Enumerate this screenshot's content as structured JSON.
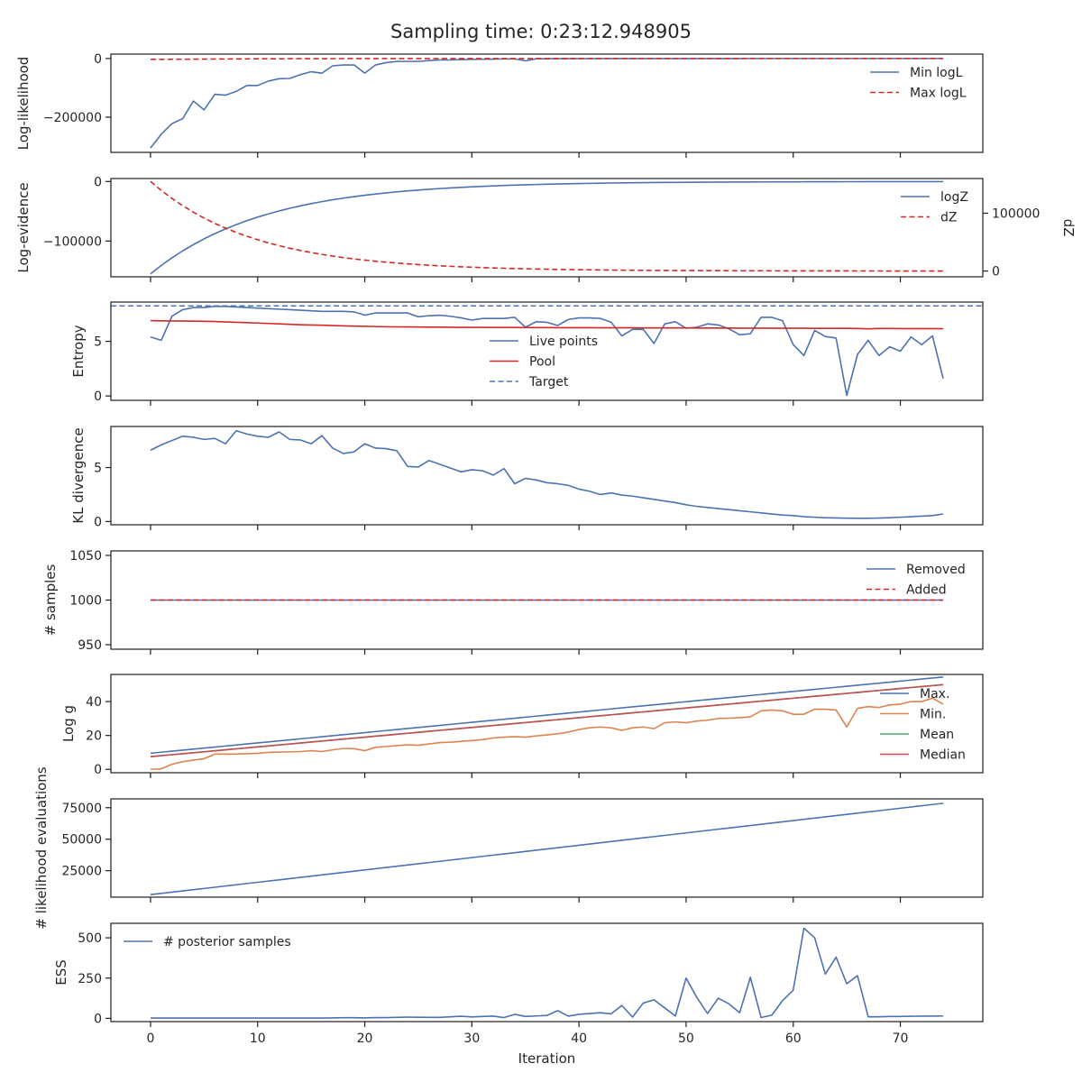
{
  "figure_title": "Sampling time: 0:23:12.948905",
  "colors": {
    "blue": "#4c72b0",
    "red": "#d62728",
    "orange": "#dd8452",
    "green": "#55a868",
    "brown": "#c44e52"
  },
  "chart_data": [
    {
      "id": "loglikelihood",
      "type": "line",
      "ylabel": "Log-likelihood",
      "ylim": [
        -320000,
        15000
      ],
      "yticks": [
        0,
        -200000
      ],
      "ytick_labels": [
        "0",
        "−200000"
      ],
      "legend": {
        "loc": "top-right"
      },
      "series": [
        {
          "name": "Min logL",
          "color": "#4c72b0",
          "style": "solid",
          "values": [
            -305000,
            -258000,
            -222000,
            -205000,
            -145000,
            -175000,
            -122000,
            -125000,
            -112000,
            -92000,
            -92000,
            -77000,
            -69000,
            -68000,
            -55000,
            -45000,
            -50000,
            -25000,
            -22000,
            -22000,
            -50000,
            -22000,
            -14000,
            -10000,
            -10000,
            -10000,
            -7000,
            -5000,
            -5000,
            -4000,
            -3000,
            -2500,
            -2000,
            -1500,
            -1200,
            -8000,
            -1000,
            -800,
            -700,
            -600,
            -500,
            -400,
            -300,
            -250,
            -200,
            -150,
            -120,
            -100,
            -80,
            -60,
            -50,
            -40,
            -30,
            -25,
            -20,
            -15,
            -12,
            -10,
            -8,
            -6,
            -5,
            -4,
            -3,
            -2,
            -2,
            -1,
            -1,
            -1,
            -1,
            -1,
            -1,
            0,
            0,
            0,
            0
          ]
        },
        {
          "name": "Max logL",
          "color": "#d62728",
          "style": "dashed",
          "values": [
            -3000,
            -2800,
            -2600,
            -2400,
            -2200,
            -2000,
            -1800,
            -1600,
            -1400,
            -1200,
            -1000,
            -900,
            -800,
            -700,
            -600,
            -500,
            -450,
            -400,
            -350,
            -300,
            -250,
            -200,
            -180,
            -160,
            -140,
            -120,
            -100,
            -90,
            -80,
            -70,
            -60,
            -50,
            -45,
            -40,
            -35,
            -30,
            -25,
            -20,
            -18,
            -16,
            -14,
            -12,
            -10,
            -9,
            -8,
            -7,
            -6,
            -5,
            -4,
            -4,
            -3,
            -3,
            -2,
            -2,
            -2,
            -1,
            -1,
            -1,
            -1,
            -1,
            -1,
            0,
            0,
            0,
            0,
            0,
            0,
            0,
            0,
            0,
            0,
            0,
            0,
            0,
            0
          ]
        }
      ]
    },
    {
      "id": "logevidence",
      "type": "line",
      "ylabel": "Log-evidence",
      "ylabel2": "dZ",
      "ylim": [
        -160000,
        5000
      ],
      "yticks": [
        0,
        -100000
      ],
      "ytick_labels": [
        "0",
        "−100000"
      ],
      "y2lim": [
        -10000,
        160000
      ],
      "y2ticks": [
        100000,
        0
      ],
      "y2tick_labels": [
        "100000",
        "0"
      ],
      "legend": {
        "loc": "top-right"
      },
      "series": [
        {
          "name": "logZ",
          "color": "#4c72b0",
          "style": "solid",
          "values": []
        },
        {
          "name": "dZ",
          "color": "#d62728",
          "style": "dashed",
          "axis": "right",
          "values": []
        }
      ]
    },
    {
      "id": "entropy",
      "type": "line",
      "ylabel": "Entropy",
      "ylim": [
        -0.4,
        8.6
      ],
      "yticks": [
        0,
        5
      ],
      "ytick_labels": [
        "0",
        "5"
      ],
      "legend": {
        "loc": "center"
      },
      "series": [
        {
          "name": "Live points",
          "color": "#4c72b0",
          "style": "solid",
          "values": [
            5.4,
            5.1,
            7.3,
            7.9,
            8.1,
            8.1,
            8.2,
            8.2,
            8.15,
            8.1,
            8.05,
            8.0,
            7.95,
            7.9,
            7.85,
            7.8,
            7.75,
            7.75,
            7.75,
            7.7,
            7.4,
            7.6,
            7.6,
            7.6,
            7.6,
            7.25,
            7.35,
            7.4,
            7.3,
            7.15,
            6.95,
            7.1,
            7.1,
            7.1,
            7.2,
            6.3,
            6.8,
            6.75,
            6.45,
            7.0,
            7.15,
            7.15,
            7.1,
            6.75,
            5.5,
            6.1,
            6.1,
            4.8,
            6.6,
            6.8,
            6.2,
            6.3,
            6.6,
            6.5,
            6.15,
            5.6,
            5.7,
            7.2,
            7.2,
            6.9,
            4.7,
            3.7,
            6.0,
            5.45,
            5.3,
            0.05,
            3.8,
            5.1,
            3.7,
            4.5,
            4.1,
            5.4,
            4.7,
            5.5,
            1.6
          ]
        },
        {
          "name": "Pool",
          "color": "#d62728",
          "style": "solid",
          "values": [
            6.9,
            6.88,
            6.87,
            6.86,
            6.85,
            6.84,
            6.82,
            6.78,
            6.75,
            6.72,
            6.68,
            6.64,
            6.6,
            6.56,
            6.52,
            6.5,
            6.48,
            6.45,
            6.42,
            6.4,
            6.38,
            6.36,
            6.34,
            6.33,
            6.32,
            6.31,
            6.3,
            6.3,
            6.29,
            6.28,
            6.28,
            6.28,
            6.27,
            6.27,
            6.27,
            6.26,
            6.26,
            6.26,
            6.25,
            6.25,
            6.25,
            6.25,
            6.24,
            6.24,
            6.24,
            6.24,
            6.23,
            6.23,
            6.23,
            6.23,
            6.23,
            6.22,
            6.22,
            6.22,
            6.22,
            6.21,
            6.21,
            6.21,
            6.2,
            6.2,
            6.2,
            6.2,
            6.19,
            6.19,
            6.19,
            6.19,
            6.18,
            6.15,
            6.18,
            6.18,
            6.17,
            6.17,
            6.17,
            6.17,
            6.16
          ]
        },
        {
          "name": "Target",
          "color": "#4c72b0",
          "style": "dashed",
          "constant": 8.25
        }
      ]
    },
    {
      "id": "kl",
      "type": "line",
      "ylabel": "KL divergence",
      "ylim": [
        -0.3,
        8.8
      ],
      "yticks": [
        0,
        5
      ],
      "ytick_labels": [
        "0",
        "5"
      ],
      "series": [
        {
          "name": "KL divergence",
          "color": "#4c72b0",
          "style": "solid",
          "values": [
            6.6,
            7.1,
            7.5,
            7.9,
            7.8,
            7.6,
            7.7,
            7.2,
            8.4,
            8.1,
            7.9,
            7.8,
            8.3,
            7.6,
            7.55,
            7.2,
            7.95,
            6.8,
            6.3,
            6.45,
            7.2,
            6.8,
            6.75,
            6.55,
            5.1,
            5.05,
            5.65,
            5.3,
            4.95,
            4.6,
            4.8,
            4.7,
            4.3,
            4.9,
            3.5,
            4.0,
            3.85,
            3.6,
            3.5,
            3.35,
            3.0,
            2.8,
            2.5,
            2.65,
            2.45,
            2.35,
            2.2,
            2.05,
            1.9,
            1.75,
            1.55,
            1.4,
            1.3,
            1.2,
            1.1,
            1.0,
            0.9,
            0.8,
            0.7,
            0.6,
            0.55,
            0.45,
            0.4,
            0.35,
            0.33,
            0.31,
            0.3,
            0.3,
            0.32,
            0.35,
            0.4,
            0.45,
            0.5,
            0.55,
            0.7
          ]
        }
      ]
    },
    {
      "id": "samples",
      "type": "line",
      "ylabel": "# samples",
      "ylim": [
        945,
        1055
      ],
      "yticks": [
        1050,
        1000,
        950
      ],
      "ytick_labels": [
        "1050",
        "1000",
        "950"
      ],
      "legend": {
        "loc": "top-right"
      },
      "series": [
        {
          "name": "Removed",
          "color": "#4c72b0",
          "style": "solid",
          "constant": 1000
        },
        {
          "name": "Added",
          "color": "#d62728",
          "style": "dashed",
          "constant": 1000
        }
      ]
    },
    {
      "id": "logg",
      "type": "line",
      "ylabel": "Log g",
      "ylim": [
        -2,
        56
      ],
      "yticks": [
        0,
        20,
        40
      ],
      "ytick_labels": [
        "0",
        "20",
        "40"
      ],
      "legend": {
        "loc": "right"
      },
      "series": [
        {
          "name": "Max.",
          "color": "#4c72b0",
          "style": "solid",
          "start": 9.5,
          "end": 54.5
        },
        {
          "name": "Min.",
          "color": "#dd8452",
          "style": "solid",
          "values": [
            0,
            0.3,
            3,
            4.5,
            5.5,
            6.3,
            9,
            9,
            9,
            9.2,
            9.5,
            10,
            10.2,
            10.3,
            10.5,
            11,
            10.5,
            11.5,
            12.3,
            12.2,
            11,
            13,
            13.5,
            14,
            14.5,
            14.2,
            15,
            15.8,
            16,
            16.5,
            17,
            17.5,
            18.5,
            19,
            19.3,
            19,
            19.7,
            20.3,
            21,
            22,
            23.5,
            24.5,
            25,
            24.5,
            23,
            24.5,
            25,
            24,
            27.5,
            28,
            27.5,
            28.5,
            29,
            30,
            30.2,
            30.5,
            31,
            34.5,
            35,
            34.5,
            32.5,
            32.5,
            35.5,
            35.5,
            35,
            25,
            36,
            37,
            36.5,
            38,
            38.5,
            40,
            40,
            42,
            38.5
          ]
        },
        {
          "name": "Mean",
          "color": "#55a868",
          "style": "solid",
          "start": 7.5,
          "end": 50
        },
        {
          "name": "Median",
          "color": "#c44e52",
          "style": "solid",
          "start": 7.5,
          "end": 50
        }
      ]
    },
    {
      "id": "evaluations",
      "type": "line",
      "ylabel": "# likelihood evaluations",
      "ylim": [
        4000,
        82000
      ],
      "yticks": [
        75000,
        50000,
        25000
      ],
      "ytick_labels": [
        "75000",
        "50000",
        "25000"
      ],
      "series": [
        {
          "name": "# likelihood evaluations",
          "color": "#4c72b0",
          "style": "solid",
          "start": 6000,
          "end": 78500
        }
      ]
    },
    {
      "id": "ess",
      "type": "line",
      "ylabel": "ESS",
      "xlabel": "Iteration",
      "ylim": [
        -20,
        590
      ],
      "yticks": [
        0,
        250,
        500
      ],
      "ytick_labels": [
        "0",
        "250",
        "500"
      ],
      "xlim": [
        -3.7,
        77.7
      ],
      "xticks": [
        0,
        10,
        20,
        30,
        40,
        50,
        60,
        70
      ],
      "xtick_labels": [
        "0",
        "10",
        "20",
        "30",
        "40",
        "50",
        "60",
        "70"
      ],
      "legend": {
        "loc": "top-left"
      },
      "series": [
        {
          "name": "# posterior samples",
          "color": "#4c72b0",
          "style": "solid",
          "values": [
            2,
            2,
            2,
            2,
            2,
            2,
            2,
            2,
            2,
            2,
            2,
            2,
            2,
            2,
            2,
            2,
            2,
            3,
            4,
            4,
            3,
            5,
            5,
            6,
            8,
            7,
            6,
            6,
            10,
            13,
            9,
            12,
            14,
            5,
            25,
            12,
            15,
            18,
            48,
            14,
            25,
            30,
            35,
            28,
            80,
            8,
            95,
            115,
            65,
            15,
            250,
            130,
            30,
            125,
            90,
            35,
            255,
            5,
            20,
            110,
            175,
            560,
            500,
            275,
            380,
            215,
            265,
            10,
            10,
            12,
            12,
            13,
            14,
            14,
            15
          ]
        }
      ]
    }
  ]
}
